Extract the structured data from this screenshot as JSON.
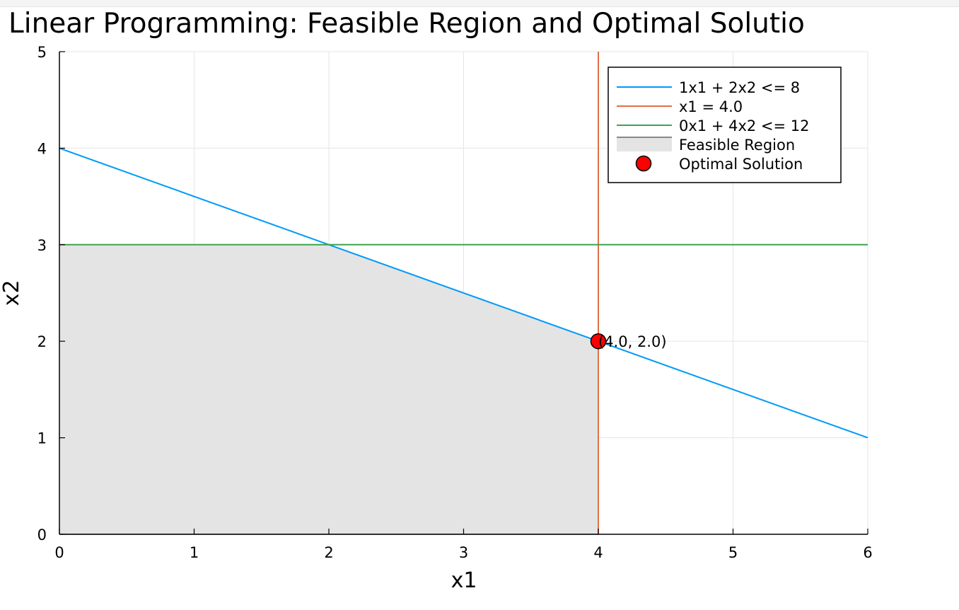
{
  "chart_data": {
    "type": "line",
    "title": "Linear Programming: Feasible Region and Optimal Solutio",
    "xlabel": "x1",
    "ylabel": "x2",
    "xlim": [
      0,
      6
    ],
    "ylim": [
      0,
      5
    ],
    "xticks": [
      0,
      1,
      2,
      3,
      4,
      5,
      6
    ],
    "yticks": [
      0,
      1,
      2,
      3,
      4,
      5
    ],
    "grid": true,
    "legend_position": "top-right",
    "series": [
      {
        "name": "1x1 + 2x2 <= 8",
        "kind": "line",
        "color": "#009af9",
        "x": [
          0,
          6
        ],
        "y": [
          4,
          1
        ]
      },
      {
        "name": "x1 = 4.0",
        "kind": "line",
        "color": "#e26f46",
        "x": [
          4,
          4
        ],
        "y": [
          0,
          5
        ]
      },
      {
        "name": "0x1 + 4x2 <= 12",
        "kind": "line",
        "color": "#3ea44e",
        "x": [
          0,
          6
        ],
        "y": [
          3,
          3
        ]
      }
    ],
    "feasible_region": {
      "name": "Feasible Region",
      "fill": "#e4e4e4",
      "edge": "#888888",
      "x": [
        0,
        2,
        4,
        4,
        0
      ],
      "y": [
        3,
        3,
        2,
        0,
        0
      ]
    },
    "optimal_point": {
      "name": "Optimal Solution",
      "x": 4.0,
      "y": 2.0,
      "color": "#ff0000",
      "label": "(4.0, 2.0)"
    }
  }
}
